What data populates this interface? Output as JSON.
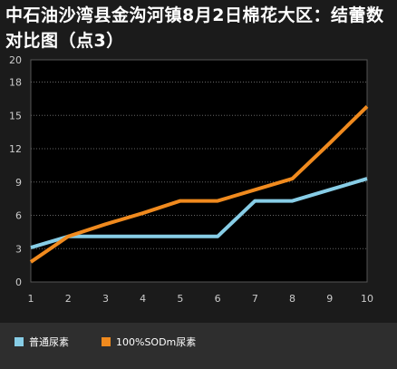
{
  "title": "中石油沙湾县金沟河镇8月2日棉花大区：结蕾数对比图（点3）",
  "chart_data": {
    "type": "line",
    "x": [
      1,
      2,
      3,
      4,
      5,
      6,
      7,
      8,
      9,
      10
    ],
    "ylim": [
      0,
      20
    ],
    "yticks": [
      0,
      3,
      6,
      9,
      12,
      15,
      18,
      20
    ],
    "grid": true,
    "legend_placement": "bottom",
    "series": [
      {
        "name": "普通尿素",
        "color": "#87cde6",
        "values": [
          3.1,
          4.1,
          4.1,
          4.1,
          4.1,
          4.1,
          7.3,
          7.3,
          8.3,
          9.3
        ]
      },
      {
        "name": "100%SODm尿素",
        "color": "#f08a1e",
        "values": [
          1.8,
          4.1,
          5.2,
          6.2,
          7.3,
          7.3,
          8.3,
          9.3,
          12.5,
          15.8
        ]
      }
    ]
  }
}
